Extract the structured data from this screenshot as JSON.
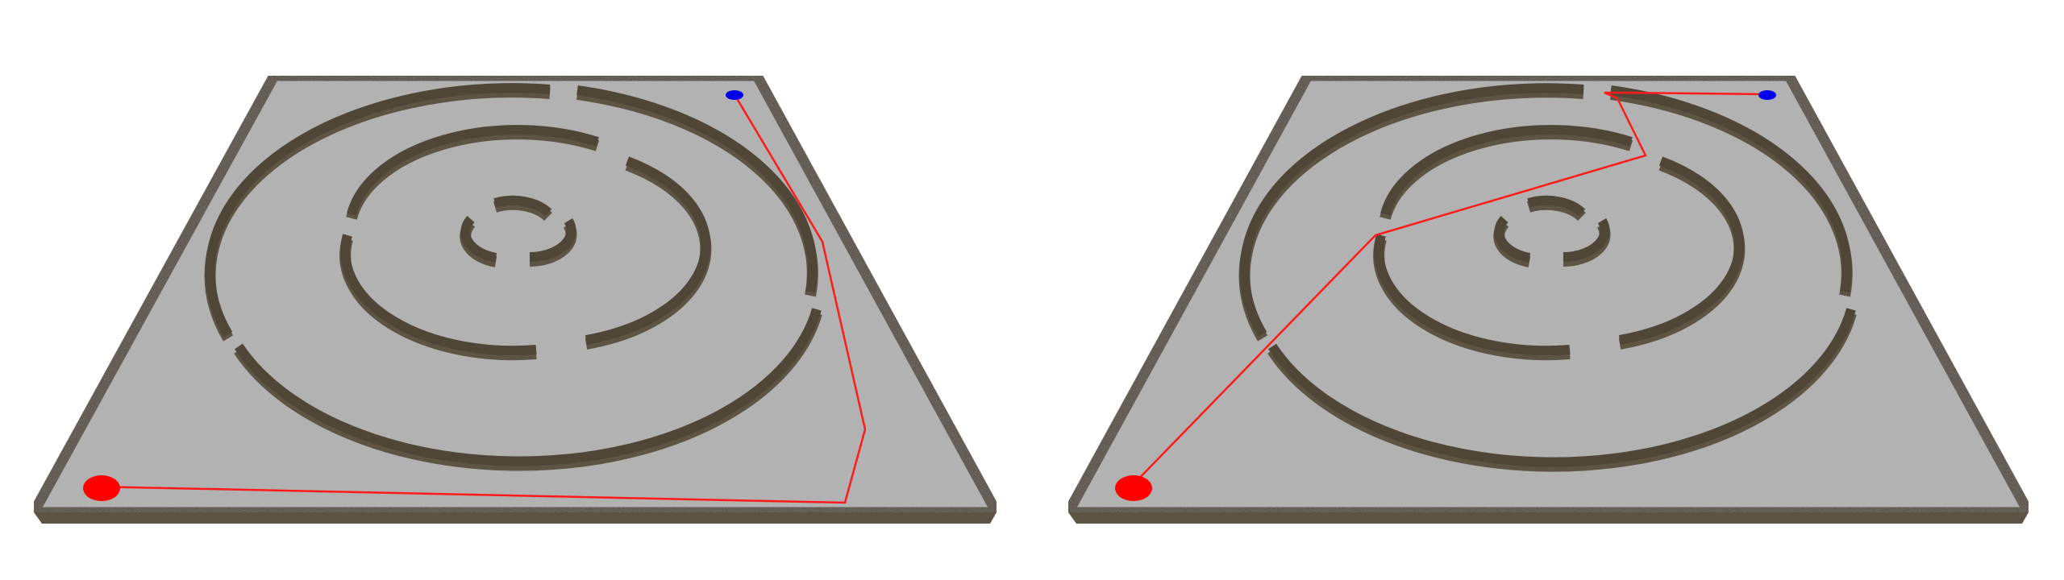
{
  "colors": {
    "background": "#ffffff",
    "floor": "#b2b2b2",
    "wall_top": "#4f4638",
    "wall_side": "#5d5444",
    "path": "#ff1a1a",
    "start_marker": "#ff0000",
    "goal_marker": "#0000ee"
  },
  "panels": [
    {
      "id": "left",
      "path": [
        [
          118,
          604
        ],
        [
          1048,
          624
        ],
        [
          1073,
          533
        ],
        [
          1020,
          300
        ],
        [
          912,
          119
        ]
      ]
    },
    {
      "id": "right",
      "path": [
        [
          1403,
          604
        ],
        [
          1706,
          292
        ],
        [
          2041,
          193
        ],
        [
          2006,
          122
        ],
        [
          1990,
          115
        ],
        [
          2005,
          115
        ],
        [
          2190,
          117
        ]
      ]
    }
  ]
}
